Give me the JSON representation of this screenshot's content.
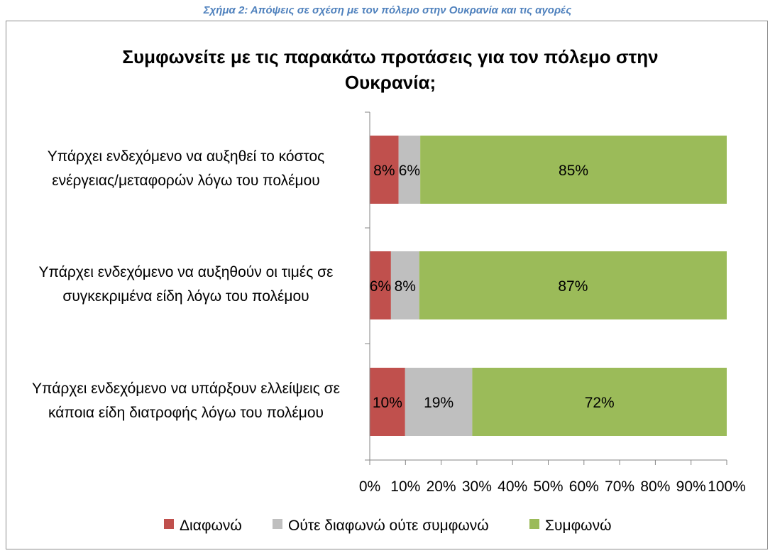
{
  "caption": "Σχήμα 2: Απόψεις σε σχέση με τον πόλεμο στην Ουκρανία και τις αγορές",
  "colors": {
    "caption": "#4f81bd",
    "disagree": "#c0504d",
    "neutral": "#bfbfbf",
    "agree": "#9bbb59"
  },
  "chart_data": {
    "type": "bar",
    "orientation": "horizontal",
    "stacked": "percent",
    "title": "Συμφωνείτε με τις παρακάτω προτάσεις για τον πόλεμο στην Ουκρανία;",
    "categories": [
      [
        "Υπάρχει ενδεχόμενο να αυξηθεί το κόστος",
        "ενέργειας/μεταφορών λόγω του πολέμου"
      ],
      [
        "Υπάρχει ενδεχόμενο να αυξηθούν οι τιμές σε",
        "συγκεκριμένα είδη λόγω του πολέμου"
      ],
      [
        "Υπάρχει ενδεχόμενο να υπάρξουν ελλείψεις σε",
        "κάποια είδη διατροφής λόγω του πολέμου"
      ]
    ],
    "series": [
      {
        "name": "Διαφωνώ",
        "values": [
          8,
          6,
          10
        ],
        "labels": [
          "8%",
          "6%",
          "10%"
        ]
      },
      {
        "name": "Ούτε διαφωνώ ούτε συμφωνώ",
        "values": [
          6,
          8,
          19
        ],
        "labels": [
          "6%",
          "8%",
          "19%"
        ]
      },
      {
        "name": "Συμφωνώ",
        "values": [
          85,
          87,
          72
        ],
        "labels": [
          "85%",
          "87%",
          "72%"
        ]
      }
    ],
    "xlim": [
      0,
      100
    ],
    "xticks": [
      "0%",
      "10%",
      "20%",
      "30%",
      "40%",
      "50%",
      "60%",
      "70%",
      "80%",
      "90%",
      "100%"
    ],
    "grid": false,
    "legend_position": "bottom"
  }
}
